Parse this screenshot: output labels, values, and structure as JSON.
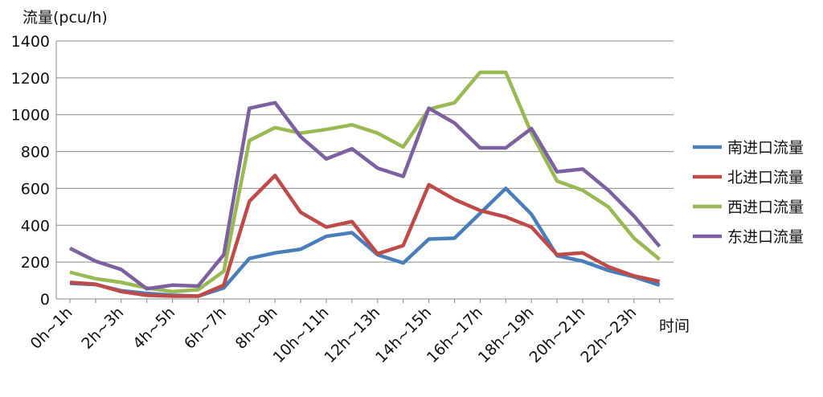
{
  "chart_data": {
    "type": "line",
    "y_label": "流量(pcu/h)",
    "x_label": "时间",
    "categories": [
      "0h~1h",
      null,
      "2h~3h",
      null,
      "4h~5h",
      null,
      "6h~7h",
      null,
      "8h~9h",
      null,
      "10h~11h",
      null,
      "12h~13h",
      null,
      "14h~15h",
      null,
      "16h~17h",
      null,
      "18h~19h",
      null,
      "20h~21h",
      null,
      "22h~23h",
      null
    ],
    "series": [
      {
        "name": "南进口流量",
        "color": "#4a7ebb",
        "values": [
          85,
          78,
          45,
          30,
          20,
          15,
          60,
          220,
          250,
          270,
          340,
          360,
          240,
          195,
          325,
          330,
          465,
          600,
          460,
          235,
          205,
          155,
          120,
          75
        ]
      },
      {
        "name": "北进口流量",
        "color": "#be4b48",
        "values": [
          90,
          80,
          40,
          20,
          15,
          15,
          75,
          530,
          670,
          470,
          390,
          420,
          245,
          290,
          620,
          540,
          480,
          445,
          390,
          240,
          250,
          175,
          125,
          95
        ]
      },
      {
        "name": "西进口流量",
        "color": "#98b954",
        "values": [
          145,
          110,
          90,
          60,
          40,
          50,
          150,
          860,
          930,
          900,
          920,
          945,
          900,
          825,
          1030,
          1065,
          1230,
          1230,
          900,
          640,
          590,
          500,
          330,
          215
        ]
      },
      {
        "name": "东进口流量",
        "color": "#7d60a0",
        "values": [
          275,
          205,
          160,
          55,
          75,
          70,
          240,
          1035,
          1065,
          880,
          760,
          815,
          710,
          665,
          1035,
          955,
          820,
          820,
          925,
          690,
          705,
          590,
          450,
          285
        ]
      }
    ],
    "ylim": [
      0,
      1400
    ],
    "yticks": [
      0,
      200,
      400,
      600,
      800,
      1000,
      1200,
      1400
    ],
    "grid": true,
    "legend": "right"
  }
}
